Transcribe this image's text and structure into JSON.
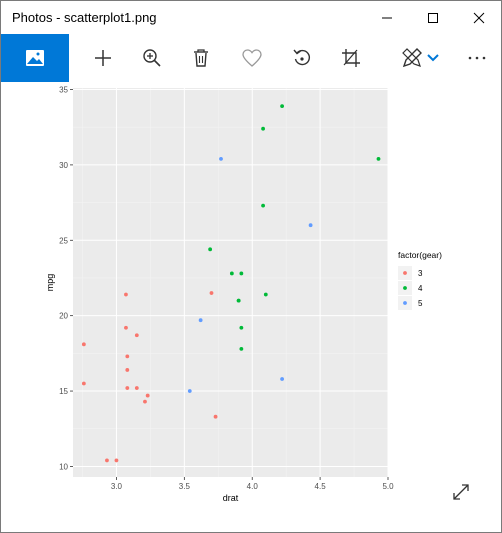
{
  "window": {
    "title": "Photos - scatterplot1.png"
  },
  "window_controls": {
    "minimize_icon": "minimize-icon",
    "maximize_icon": "maximize-icon",
    "close_icon": "close-icon"
  },
  "toolbar": {
    "items": [
      "image-icon",
      "plus-icon",
      "zoom-in-icon",
      "trash-icon",
      "heart-icon",
      "rotate-icon",
      "crop-icon",
      "edit-icon",
      "chevron-down-icon",
      "more-icon"
    ],
    "accent": "#0078d7"
  },
  "chart_data": {
    "type": "scatter",
    "xlabel": "drat",
    "ylabel": "mpg",
    "xlim": [
      2.68,
      5.0
    ],
    "ylim": [
      9.3,
      35.1
    ],
    "x_ticks": [
      "3.0",
      "3.5",
      "4.0",
      "4.5",
      "5.0"
    ],
    "y_ticks": [
      "10",
      "15",
      "20",
      "25",
      "30",
      "35"
    ],
    "x_tick_values": [
      3.0,
      3.5,
      4.0,
      4.5,
      5.0
    ],
    "y_tick_values": [
      10,
      15,
      20,
      25,
      30,
      35
    ],
    "legend": {
      "title": "factor(gear)",
      "placement": "right"
    },
    "background": "#ebebeb",
    "grid": true,
    "series": [
      {
        "name": "3",
        "color": "#f8766d",
        "points": [
          [
            2.76,
            18.1
          ],
          [
            2.76,
            15.5
          ],
          [
            2.93,
            10.4
          ],
          [
            3.0,
            10.4
          ],
          [
            3.07,
            21.4
          ],
          [
            3.07,
            19.2
          ],
          [
            3.15,
            18.7
          ],
          [
            3.08,
            17.3
          ],
          [
            3.08,
            16.4
          ],
          [
            3.08,
            15.2
          ],
          [
            3.15,
            15.2
          ],
          [
            3.23,
            14.7
          ],
          [
            3.21,
            14.3
          ],
          [
            3.73,
            13.3
          ],
          [
            3.7,
            21.5
          ]
        ]
      },
      {
        "name": "4",
        "color": "#00ba38",
        "points": [
          [
            4.22,
            33.9
          ],
          [
            4.08,
            32.4
          ],
          [
            4.93,
            30.4
          ],
          [
            4.08,
            27.3
          ],
          [
            3.69,
            24.4
          ],
          [
            3.85,
            22.8
          ],
          [
            3.92,
            22.8
          ],
          [
            3.9,
            21.0
          ],
          [
            4.1,
            21.4
          ],
          [
            3.92,
            19.2
          ],
          [
            3.92,
            17.8
          ],
          [
            3.9,
            21.0
          ]
        ]
      },
      {
        "name": "5",
        "color": "#619cff",
        "points": [
          [
            3.77,
            30.4
          ],
          [
            4.43,
            26.0
          ],
          [
            3.62,
            19.7
          ],
          [
            3.54,
            15.0
          ],
          [
            4.22,
            15.8
          ]
        ]
      }
    ]
  }
}
